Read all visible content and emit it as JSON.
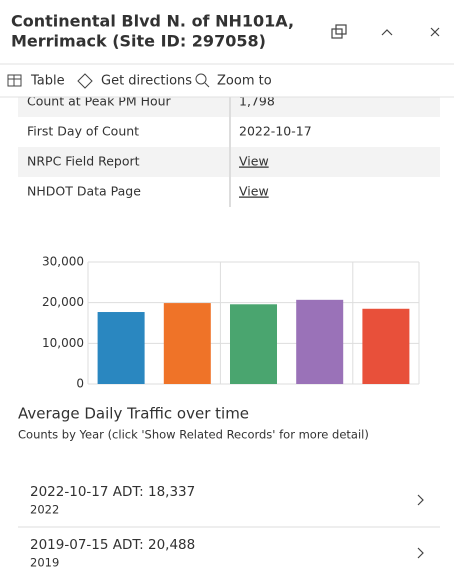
{
  "header": {
    "title_lines": [
      "Continental Blvd N. of NH101A,",
      "Merrimack (Site ID: 297058)"
    ]
  },
  "toolbar": [
    "Table",
    "Get directions",
    "Zoom to"
  ],
  "table": {
    "rows": [
      [
        "Count at Peak PM Hour",
        "1,798"
      ],
      [
        "First Day of Count",
        "2022-10-17"
      ],
      [
        "NRPC Field Report",
        "View"
      ],
      [
        "NHDOT Data Page",
        "View"
      ]
    ]
  },
  "chart_data": {
    "type": "bar",
    "title": "Average Daily Traffic over time",
    "subtitle": "Counts by Year (click 'Show Related Records' for more detail)",
    "categories": [
      null,
      null,
      null,
      null,
      null
    ],
    "values": [
      17700,
      19900,
      19600,
      20700,
      18500
    ],
    "colors": [
      "#2a87c0",
      "#ef7328",
      "#4aa56f",
      "#9a72b8",
      "#e8503a"
    ],
    "ylim": [
      0,
      30000
    ],
    "yticks": [
      0,
      {
        "value": 10000,
        "label": "10,000"
      },
      {
        "value": 20000,
        "label": "20,000"
      },
      {
        "value": 30000,
        "label": "30,000"
      }
    ],
    "grid": true
  },
  "records": [
    {
      "title": "2022-10-17 ADT: 18,337",
      "subtitle": "2022"
    },
    {
      "title": "2019-07-15 ADT: 20,488",
      "subtitle": "2019"
    }
  ]
}
